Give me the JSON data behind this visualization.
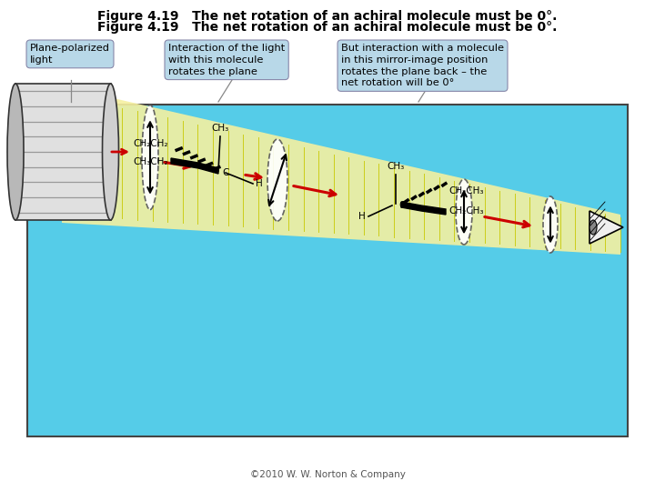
{
  "title": "Figure 4.19   The net rotation of an achiral molecule must be 0°.",
  "copyright": "©2010 W. W. Norton & Company",
  "bg_color": "#ffffff",
  "diagram_bg": "#55cce8",
  "beam_color": "#f5f0a0",
  "yellow_line_color": "#c8c800",
  "red_arrow_color": "#cc0000",
  "label_box_color": "#b8d8e8",
  "label_box1_text": "Plane-polarized\nlight",
  "label_box2_text": "Interaction of the light\nwith this molecule\nrotates the plane",
  "label_box3_text": "But interaction with a molecule\nin this mirror-image position\nrotates the plane back – the\nnet rotation will be 0°"
}
